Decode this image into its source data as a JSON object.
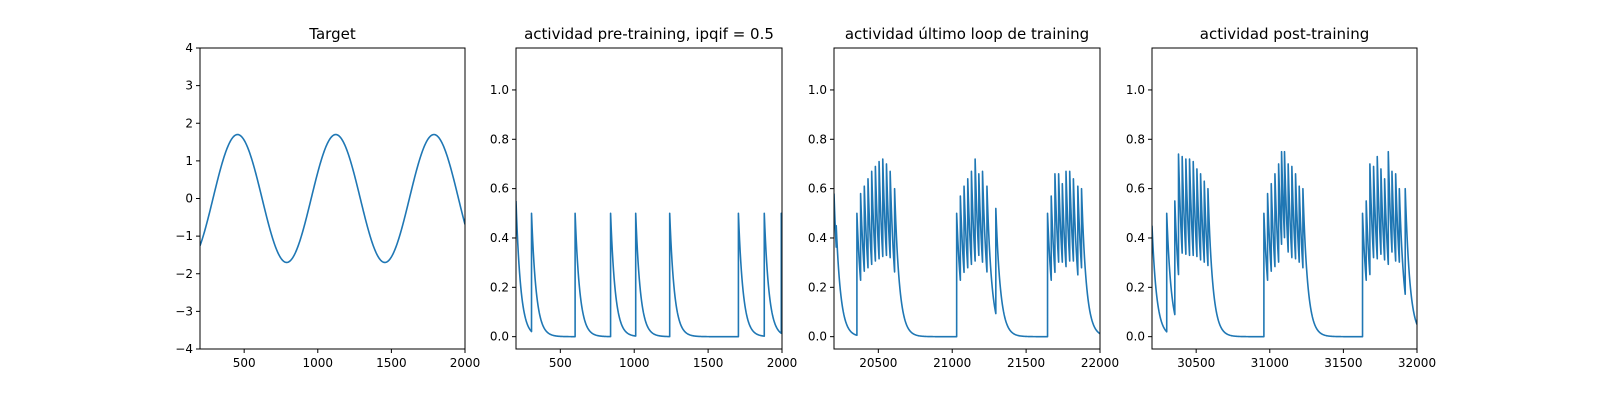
{
  "colors": {
    "series": "#1f77b4",
    "axes": "#000000",
    "background": "#ffffff"
  },
  "chart_data": [
    {
      "type": "line",
      "title": "Target",
      "xlim": [
        200,
        2000
      ],
      "ylim": [
        -4,
        4
      ],
      "xticks": [
        500,
        1000,
        1500,
        2000
      ],
      "yticks": [
        -4,
        -3,
        -2,
        -1,
        0,
        1,
        2,
        3,
        4
      ],
      "grid": false,
      "series": [
        {
          "kind": "sine",
          "amplitude": 1.7,
          "period": 667,
          "peak_x": 455,
          "x": [
            200,
            2000
          ]
        }
      ]
    },
    {
      "type": "line",
      "title": "actividad pre-training, ipqif = 0.5",
      "xlim": [
        200,
        2000
      ],
      "ylim": [
        -0.05,
        1.17
      ],
      "xticks": [
        500,
        1000,
        1500,
        2000
      ],
      "yticks": [
        0.0,
        0.2,
        0.4,
        0.6,
        0.8,
        1.0
      ],
      "grid": false,
      "series": [
        {
          "kind": "spike_train",
          "start_level": 0.55,
          "spikes": [
            {
              "x": 305,
              "y": 0.5
            },
            {
              "x": 600,
              "y": 0.5
            },
            {
              "x": 840,
              "y": 0.5
            },
            {
              "x": 1010,
              "y": 0.5
            },
            {
              "x": 1240,
              "y": 0.5
            },
            {
              "x": 1705,
              "y": 0.5
            },
            {
              "x": 1880,
              "y": 0.5
            },
            {
              "x": 1995,
              "y": 0.5
            }
          ]
        }
      ]
    },
    {
      "type": "line",
      "title": "actividad último loop de training",
      "xlim": [
        20200,
        22000
      ],
      "ylim": [
        -0.05,
        1.17
      ],
      "xticks": [
        20500,
        21000,
        21500,
        22000
      ],
      "yticks": [
        0.0,
        0.2,
        0.4,
        0.6,
        0.8,
        1.0
      ],
      "grid": false,
      "series": [
        {
          "kind": "spike_train",
          "start_level": 0.58,
          "spikes": [
            {
              "x": 20215,
              "y": 0.45
            },
            {
              "x": 20355,
              "y": 0.5
            },
            {
              "x": 20380,
              "y": 0.58
            },
            {
              "x": 20405,
              "y": 0.61
            },
            {
              "x": 20430,
              "y": 0.64
            },
            {
              "x": 20455,
              "y": 0.67
            },
            {
              "x": 20480,
              "y": 0.69
            },
            {
              "x": 20505,
              "y": 0.71
            },
            {
              "x": 20530,
              "y": 0.72
            },
            {
              "x": 20555,
              "y": 0.7
            },
            {
              "x": 20580,
              "y": 0.67
            },
            {
              "x": 20610,
              "y": 0.6
            },
            {
              "x": 21030,
              "y": 0.5
            },
            {
              "x": 21055,
              "y": 0.57
            },
            {
              "x": 21080,
              "y": 0.61
            },
            {
              "x": 21105,
              "y": 0.64
            },
            {
              "x": 21130,
              "y": 0.67
            },
            {
              "x": 21155,
              "y": 0.72
            },
            {
              "x": 21180,
              "y": 0.66
            },
            {
              "x": 21205,
              "y": 0.67
            },
            {
              "x": 21235,
              "y": 0.61
            },
            {
              "x": 21295,
              "y": 0.52
            },
            {
              "x": 21645,
              "y": 0.5
            },
            {
              "x": 21670,
              "y": 0.57
            },
            {
              "x": 21695,
              "y": 0.66
            },
            {
              "x": 21720,
              "y": 0.66
            },
            {
              "x": 21745,
              "y": 0.62
            },
            {
              "x": 21770,
              "y": 0.67
            },
            {
              "x": 21795,
              "y": 0.67
            },
            {
              "x": 21820,
              "y": 0.64
            },
            {
              "x": 21850,
              "y": 0.61
            },
            {
              "x": 21875,
              "y": 0.6
            }
          ]
        }
      ]
    },
    {
      "type": "line",
      "title": "actividad post-training",
      "xlim": [
        30200,
        32000
      ],
      "ylim": [
        -0.05,
        1.17
      ],
      "xticks": [
        30500,
        31000,
        31500,
        32000
      ],
      "yticks": [
        0.0,
        0.2,
        0.4,
        0.6,
        0.8,
        1.0
      ],
      "grid": false,
      "series": [
        {
          "kind": "spike_train",
          "start_level": 0.45,
          "spikes": [
            {
              "x": 30300,
              "y": 0.5
            },
            {
              "x": 30355,
              "y": 0.55
            },
            {
              "x": 30380,
              "y": 0.74
            },
            {
              "x": 30405,
              "y": 0.73
            },
            {
              "x": 30430,
              "y": 0.72
            },
            {
              "x": 30455,
              "y": 0.72
            },
            {
              "x": 30480,
              "y": 0.71
            },
            {
              "x": 30505,
              "y": 0.68
            },
            {
              "x": 30530,
              "y": 0.66
            },
            {
              "x": 30555,
              "y": 0.63
            },
            {
              "x": 30580,
              "y": 0.6
            },
            {
              "x": 30960,
              "y": 0.5
            },
            {
              "x": 30985,
              "y": 0.58
            },
            {
              "x": 31010,
              "y": 0.62
            },
            {
              "x": 31035,
              "y": 0.66
            },
            {
              "x": 31060,
              "y": 0.7
            },
            {
              "x": 31080,
              "y": 0.75
            },
            {
              "x": 31100,
              "y": 0.75
            },
            {
              "x": 31125,
              "y": 0.7
            },
            {
              "x": 31150,
              "y": 0.69
            },
            {
              "x": 31175,
              "y": 0.66
            },
            {
              "x": 31200,
              "y": 0.61
            },
            {
              "x": 31225,
              "y": 0.6
            },
            {
              "x": 31630,
              "y": 0.5
            },
            {
              "x": 31655,
              "y": 0.55
            },
            {
              "x": 31680,
              "y": 0.7
            },
            {
              "x": 31705,
              "y": 0.69
            },
            {
              "x": 31730,
              "y": 0.73
            },
            {
              "x": 31755,
              "y": 0.68
            },
            {
              "x": 31780,
              "y": 0.64
            },
            {
              "x": 31805,
              "y": 0.75
            },
            {
              "x": 31830,
              "y": 0.67
            },
            {
              "x": 31855,
              "y": 0.66
            },
            {
              "x": 31880,
              "y": 0.6
            },
            {
              "x": 31920,
              "y": 0.6
            }
          ]
        }
      ]
    }
  ]
}
